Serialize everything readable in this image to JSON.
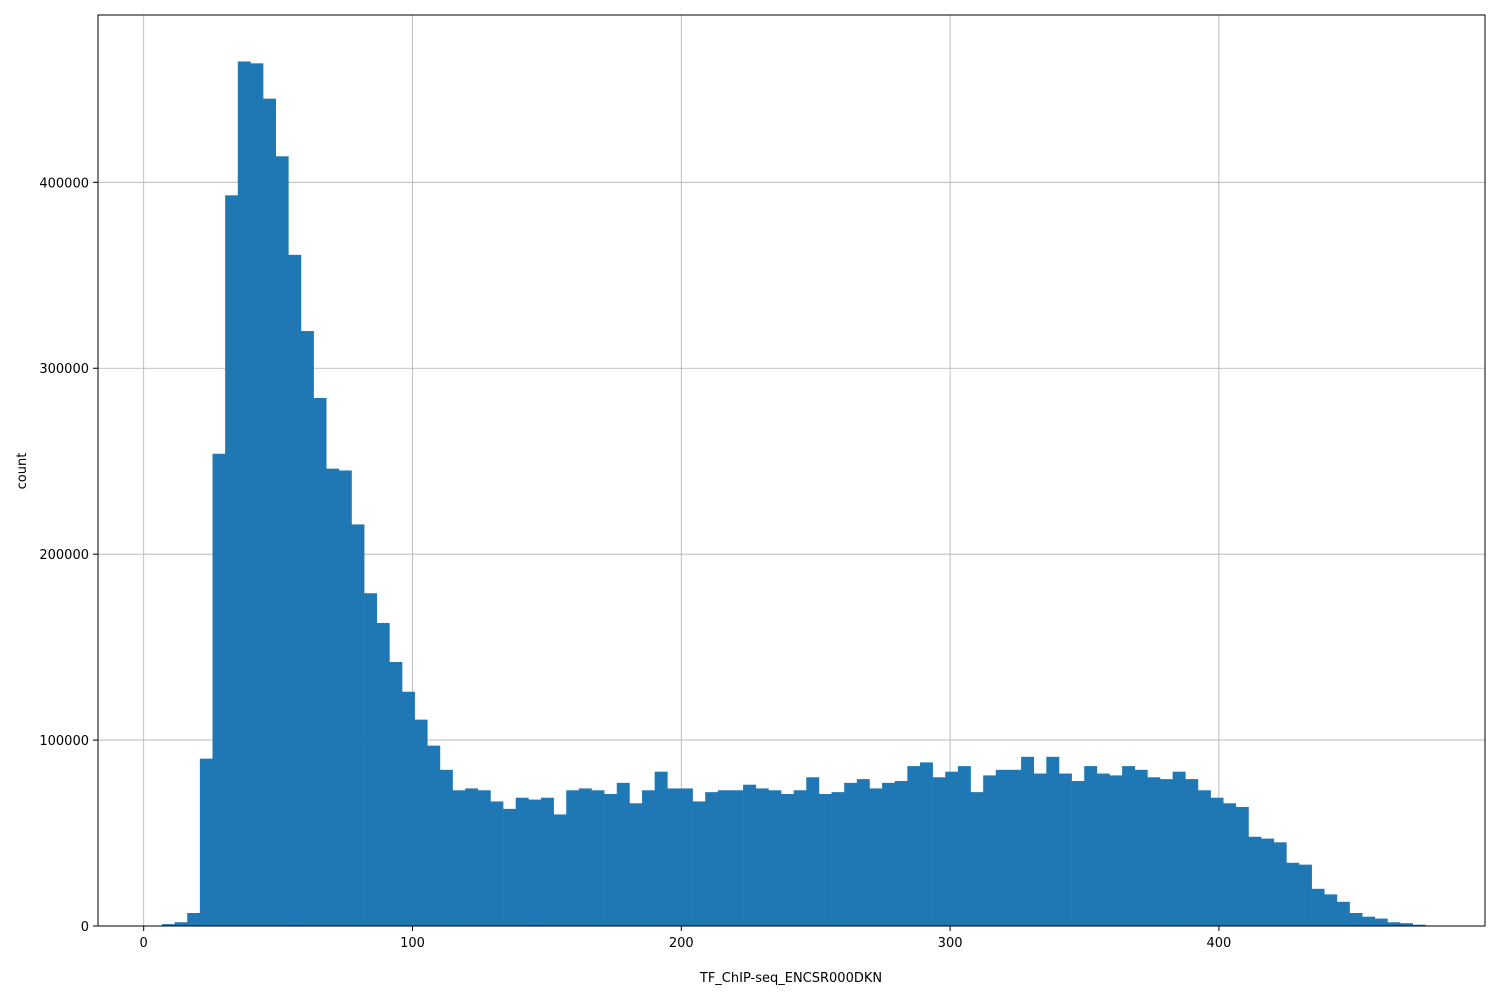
{
  "chart_data": {
    "type": "bar",
    "title": "",
    "xlabel": "TF_ChIP-seq_ENCSR000DKN",
    "ylabel": "count",
    "xlim": [
      -17,
      499
    ],
    "ylim": [
      0,
      490000
    ],
    "grid": true,
    "bar_color": "#1f77b4",
    "grid_color": "#b0b0b0",
    "xticks": [
      0,
      100,
      200,
      300,
      400
    ],
    "xtick_labels": [
      "0",
      "100",
      "200",
      "300",
      "400"
    ],
    "yticks": [
      0,
      100000,
      200000,
      300000,
      400000
    ],
    "ytick_labels": [
      "0",
      "100000",
      "200000",
      "300000",
      "400000"
    ],
    "bin_start": 6.8,
    "bin_width": 4.7,
    "values": [
      1000,
      2000,
      7000,
      90000,
      254000,
      393000,
      465000,
      464000,
      445000,
      414000,
      361000,
      320000,
      284000,
      246000,
      245000,
      216000,
      179000,
      163000,
      142000,
      126000,
      111000,
      97000,
      84000,
      73000,
      74000,
      73000,
      67000,
      63000,
      69000,
      68000,
      69000,
      60000,
      73000,
      74000,
      73000,
      71000,
      77000,
      66000,
      73000,
      83000,
      74000,
      74000,
      67000,
      72000,
      73000,
      73000,
      76000,
      74000,
      73000,
      71000,
      73000,
      80000,
      71000,
      72000,
      77000,
      79000,
      74000,
      77000,
      78000,
      86000,
      88000,
      80000,
      83000,
      86000,
      72000,
      81000,
      84000,
      84000,
      91000,
      82000,
      91000,
      82000,
      78000,
      86000,
      82000,
      81000,
      86000,
      84000,
      80000,
      79000,
      83000,
      79000,
      73000,
      69000,
      66000,
      64000,
      48000,
      47000,
      45000,
      34000,
      33000,
      20000,
      17000,
      13000,
      7000,
      5000,
      4000,
      2000,
      1500,
      700
    ]
  }
}
